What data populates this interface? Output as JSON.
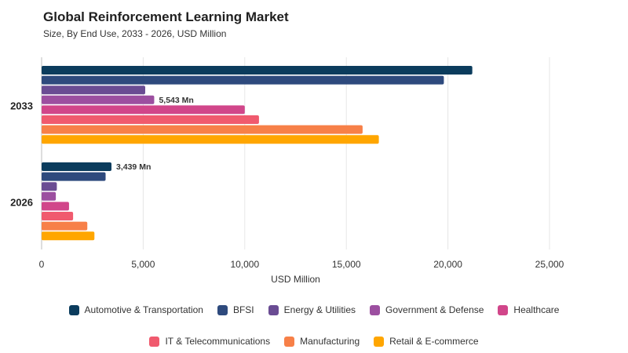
{
  "chart_data": {
    "type": "bar",
    "orientation": "horizontal",
    "title": "Global Reinforcement Learning Market",
    "subtitle": "Size, By End Use, 2033 - 2026, USD Million",
    "xlabel": "USD Million",
    "ylabel": "",
    "xlim": [
      0,
      25000
    ],
    "xticks": [
      0,
      5000,
      10000,
      15000,
      20000,
      25000
    ],
    "xtick_labels": [
      "0",
      "5,000",
      "10,000",
      "15,000",
      "20,000",
      "25,000"
    ],
    "grid": true,
    "legend_position": "bottom",
    "categories": [
      "2033",
      "2026"
    ],
    "series": [
      {
        "name": "Automotive & Transportation",
        "color": "#0b3c5d",
        "values": [
          21200,
          3439
        ]
      },
      {
        "name": "BFSI",
        "color": "#2e4a7d",
        "values": [
          19800,
          3150
        ]
      },
      {
        "name": "Energy & Utilities",
        "color": "#6a4c93",
        "values": [
          5100,
          750
        ]
      },
      {
        "name": "Government & Defense",
        "color": "#9c4fa0",
        "values": [
          5543,
          700
        ]
      },
      {
        "name": "Healthcare",
        "color": "#d1468a",
        "values": [
          10000,
          1350
        ]
      },
      {
        "name": "IT & Telecommunications",
        "color": "#f05a6e",
        "values": [
          10700,
          1550
        ]
      },
      {
        "name": "Manufacturing",
        "color": "#f78048",
        "values": [
          15800,
          2250
        ]
      },
      {
        "name": "Retail & E-commerce",
        "color": "#ffa600",
        "values": [
          16600,
          2600
        ]
      }
    ],
    "annotations": [
      {
        "text": "5,543 Mn",
        "category": "2033",
        "series": "Government & Defense"
      },
      {
        "text": "3,439 Mn",
        "category": "2026",
        "series": "Automotive & Transportation"
      }
    ]
  }
}
